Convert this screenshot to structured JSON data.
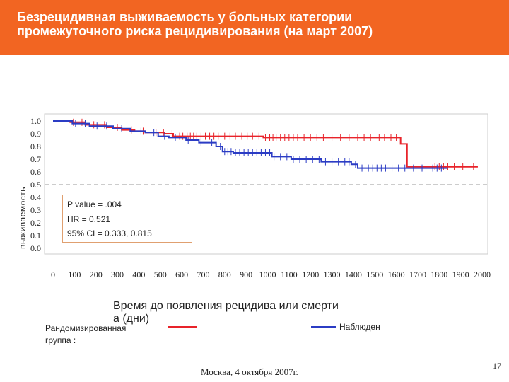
{
  "header": {
    "title": "Безрецидивная выживаемость у больных категории\nпромежуточного риска рецидивирования (на март 2007)"
  },
  "stats_box": {
    "line1": "P value = .004",
    "line2": "HR = 0.521",
    "line3": "95% CI = 0.333, 0.815"
  },
  "legend": {
    "title": "Рандомизированная\nгруппа :",
    "series2_label": "Наблюден"
  },
  "footer": {
    "text": "Москва, 4 октября 2007г.",
    "page": "17"
  },
  "colors": {
    "header": "#f26522",
    "series1": "#e8232a",
    "series2": "#2b3cc4",
    "grid_line": "#999999"
  },
  "chart_data": {
    "type": "line",
    "xlabel": "Время до появления рецидива или смерти\nа  (дни)",
    "ylabel": "выживаемость",
    "ylim": [
      0,
      1
    ],
    "xlim": [
      0,
      2000
    ],
    "yticks": [
      "1.0",
      "0.9",
      "0.8",
      "0.7",
      "0.6",
      "0.5",
      "0.4",
      "0.3",
      "0.2",
      "0.1",
      "0.0"
    ],
    "xticks": [
      "0",
      "100",
      "200",
      "300",
      "400",
      "500",
      "600",
      "700",
      "800",
      "900",
      "1000",
      "1100",
      "1200",
      "1300",
      "1400",
      "1500",
      "1600",
      "1700",
      "1800",
      "1900",
      "2000"
    ],
    "reference_line_y": 0.5,
    "series": [
      {
        "color": "#e8232a",
        "points": [
          [
            0,
            1.0
          ],
          [
            80,
            0.99
          ],
          [
            150,
            0.97
          ],
          [
            250,
            0.95
          ],
          [
            320,
            0.93
          ],
          [
            380,
            0.92
          ],
          [
            430,
            0.91
          ],
          [
            520,
            0.9
          ],
          [
            560,
            0.88
          ],
          [
            900,
            0.88
          ],
          [
            980,
            0.87
          ],
          [
            1560,
            0.87
          ],
          [
            1620,
            0.82
          ],
          [
            1650,
            0.64
          ],
          [
            1980,
            0.64
          ]
        ],
        "censor_x": [
          95,
          135,
          190,
          240,
          300,
          365,
          420,
          480,
          515,
          555,
          590,
          605,
          625,
          640,
          655,
          670,
          690,
          710,
          730,
          750,
          770,
          800,
          825,
          850,
          880,
          905,
          930,
          960,
          990,
          1010,
          1025,
          1040,
          1060,
          1080,
          1100,
          1120,
          1140,
          1170,
          1200,
          1230,
          1260,
          1300,
          1340,
          1380,
          1420,
          1450,
          1480,
          1520,
          1545,
          1575,
          1600,
          1780,
          1800,
          1820,
          1840,
          1870,
          1910,
          1960
        ]
      },
      {
        "color": "#2b3cc4",
        "points": [
          [
            0,
            1.0
          ],
          [
            90,
            0.98
          ],
          [
            170,
            0.96
          ],
          [
            280,
            0.94
          ],
          [
            360,
            0.92
          ],
          [
            430,
            0.91
          ],
          [
            490,
            0.88
          ],
          [
            540,
            0.87
          ],
          [
            620,
            0.85
          ],
          [
            680,
            0.83
          ],
          [
            760,
            0.8
          ],
          [
            790,
            0.76
          ],
          [
            840,
            0.75
          ],
          [
            1020,
            0.72
          ],
          [
            1110,
            0.7
          ],
          [
            1250,
            0.68
          ],
          [
            1390,
            0.66
          ],
          [
            1420,
            0.63
          ],
          [
            1840,
            0.63
          ]
        ],
        "censor_x": [
          105,
          150,
          205,
          250,
          320,
          410,
          470,
          520,
          570,
          630,
          690,
          740,
          780,
          800,
          815,
          830,
          850,
          870,
          890,
          910,
          930,
          950,
          970,
          990,
          1010,
          1030,
          1060,
          1090,
          1120,
          1150,
          1180,
          1210,
          1240,
          1270,
          1300,
          1330,
          1360,
          1380,
          1410,
          1440,
          1470,
          1490,
          1510,
          1530,
          1550,
          1580,
          1610,
          1640,
          1680,
          1720,
          1770,
          1790,
          1810
        ]
      }
    ]
  }
}
